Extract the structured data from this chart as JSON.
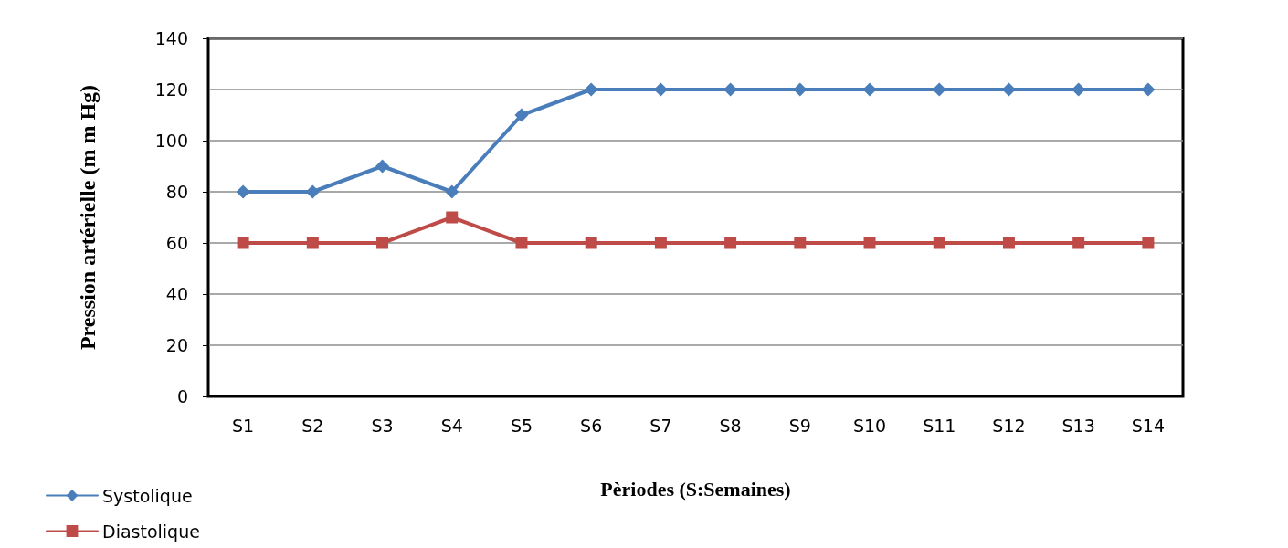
{
  "chart_data": {
    "type": "line",
    "xlabel": "Pèriodes (S:Semaines)",
    "ylabel": "Pression artérielle (m m Hg)",
    "categories": [
      "S1",
      "S2",
      "S3",
      "S4",
      "S5",
      "S6",
      "S7",
      "S8",
      "S9",
      "S10",
      "S11",
      "S12",
      "S13",
      "S14"
    ],
    "series": [
      {
        "name": "Systolique",
        "color": "#4a7ebb",
        "marker": "diamond",
        "values": [
          80,
          80,
          90,
          80,
          110,
          120,
          120,
          120,
          120,
          120,
          120,
          120,
          120,
          120
        ]
      },
      {
        "name": "Diastolique",
        "color": "#be4b48",
        "marker": "square",
        "values": [
          60,
          60,
          60,
          70,
          60,
          60,
          60,
          60,
          60,
          60,
          60,
          60,
          60,
          60
        ]
      }
    ],
    "ylim": [
      0,
      140
    ],
    "yticks": [
      0,
      20,
      40,
      60,
      80,
      100,
      120,
      140
    ],
    "grid": "y",
    "legend": "bottom left",
    "line_style": "solid"
  }
}
